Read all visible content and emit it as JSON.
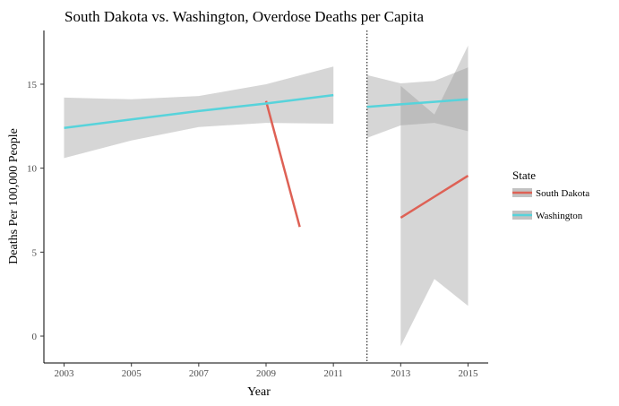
{
  "chart_data": {
    "type": "line",
    "title": "South Dakota vs. Washington, Overdose Deaths per Capita",
    "xlabel": "Year",
    "ylabel": "Deaths Per 100,000 People",
    "xlim": [
      2002.4,
      2015.6
    ],
    "ylim": [
      -1.6,
      18.2
    ],
    "x_ticks": [
      2003,
      2005,
      2007,
      2009,
      2011,
      2013,
      2015
    ],
    "x_tick_labels": [
      "2003",
      "2005",
      "2007",
      "2009",
      "2011",
      "2013",
      "2015"
    ],
    "y_ticks": [
      0,
      5,
      10,
      15
    ],
    "y_tick_labels": [
      "0",
      "5",
      "10",
      "15"
    ],
    "grid": false,
    "legend_title": "State",
    "legend_position": "right",
    "cutoff_line": {
      "x": 2012,
      "style": "dotted"
    },
    "series": [
      {
        "name": "South Dakota",
        "color": "#de6155",
        "segments": [
          {
            "x": [
              2009,
              2010
            ],
            "y": [
              14.0,
              6.5
            ],
            "ci_lower": [],
            "ci_upper": []
          },
          {
            "x": [
              2013,
              2014,
              2015
            ],
            "y": [
              7.05,
              8.3,
              9.55
            ],
            "ci_lower": [
              -0.6,
              3.4,
              1.8
            ],
            "ci_upper": [
              14.9,
              13.2,
              17.3
            ]
          }
        ]
      },
      {
        "name": "Washington",
        "color": "#57d3db",
        "segments": [
          {
            "x": [
              2003,
              2005,
              2007,
              2009,
              2011
            ],
            "y": [
              12.4,
              12.9,
              13.4,
              13.85,
              14.35
            ],
            "ci_lower": [
              10.6,
              11.65,
              12.45,
              12.7,
              12.65
            ],
            "ci_upper": [
              14.2,
              14.1,
              14.3,
              15.0,
              16.05
            ]
          },
          {
            "x": [
              2012,
              2013,
              2014,
              2015
            ],
            "y": [
              13.65,
              13.8,
              13.95,
              14.1
            ],
            "ci_lower": [
              11.8,
              12.55,
              12.7,
              12.2
            ],
            "ci_upper": [
              15.55,
              15.05,
              15.2,
              16.0
            ]
          }
        ]
      }
    ]
  }
}
